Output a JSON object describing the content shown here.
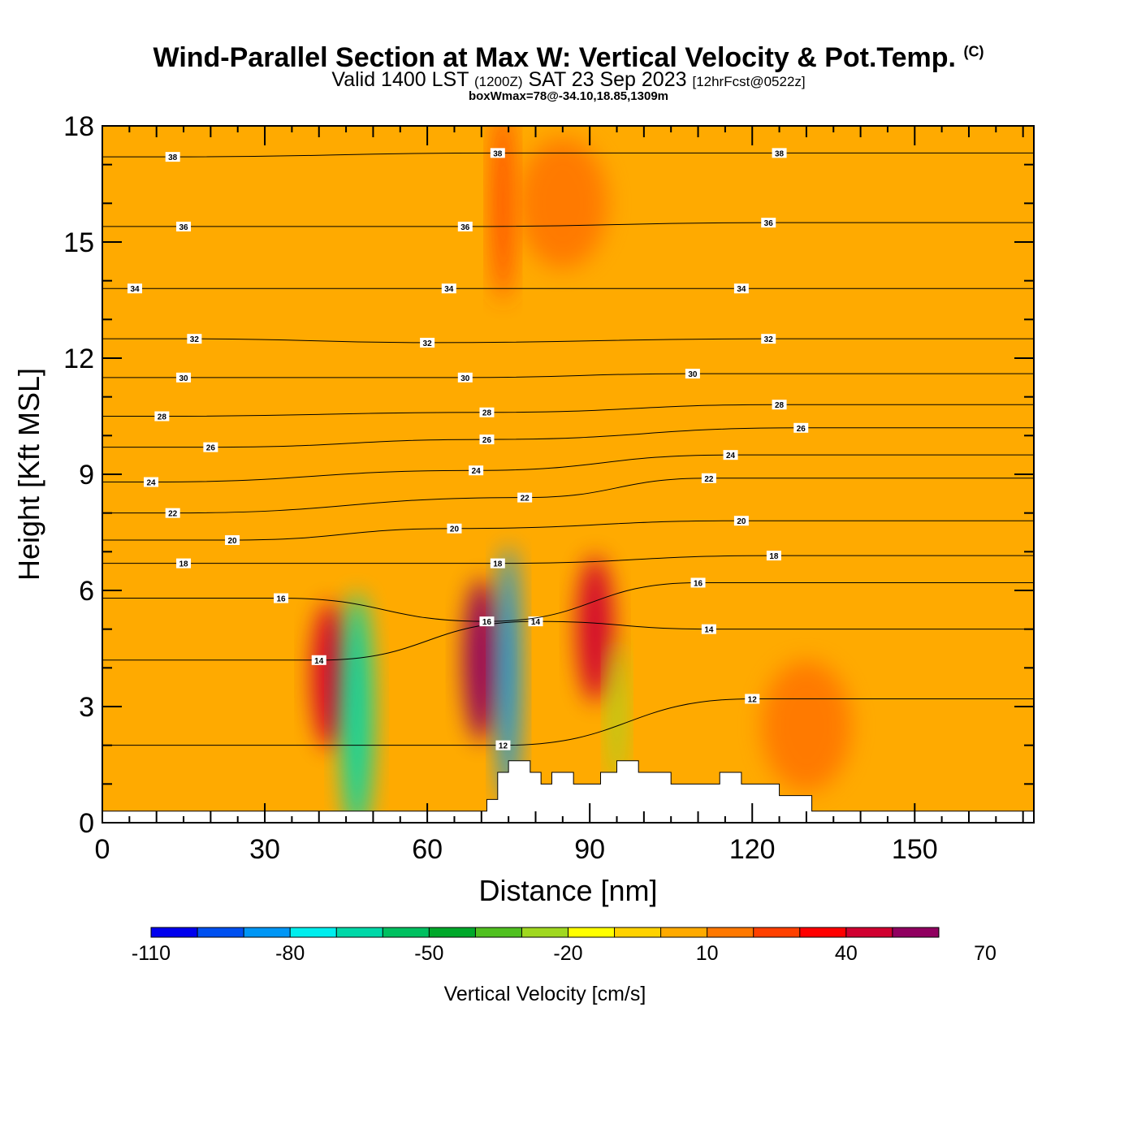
{
  "header": {
    "title": "Wind-Parallel Section at Max W: Vertical Velocity & Pot.Temp.",
    "title_mark": "(C)",
    "valid_prefix": "Valid 1400 LST",
    "valid_utc": "(1200Z)",
    "valid_date": "SAT 23 Sep 2023",
    "forecast": "[12hrFcst@0522z]",
    "box_info": "boxWmax=78@-34.10,18.85,1309m"
  },
  "chart_data": {
    "type": "heatmap",
    "xlabel": "Distance [nm]",
    "ylabel": "Height [Kft MSL]",
    "xlim": [
      0,
      172
    ],
    "ylim": [
      0,
      18
    ],
    "x_ticks": [
      0,
      30,
      60,
      90,
      120,
      150
    ],
    "y_ticks": [
      0,
      3,
      6,
      9,
      12,
      15,
      18
    ],
    "x_tick_labels": [
      "0",
      "30",
      "60",
      "90",
      "120",
      "150"
    ],
    "y_tick_labels": [
      "0",
      "3",
      "6",
      "9",
      "12",
      "15",
      "18"
    ],
    "background_value_range": [
      0,
      10
    ],
    "velocity_cells": [
      {
        "x": 42,
        "y": 3.8,
        "value": 40
      },
      {
        "x": 47,
        "y": 2.8,
        "value": -70
      },
      {
        "x": 70,
        "y": 4.2,
        "value": 50
      },
      {
        "x": 75,
        "y": 3.8,
        "value": -90
      },
      {
        "x": 91,
        "y": 5.0,
        "value": 40
      },
      {
        "x": 95,
        "y": 2.8,
        "value": -30
      },
      {
        "x": 74,
        "y": 16.0,
        "value": 20
      },
      {
        "x": 85,
        "y": 16.0,
        "value": 15
      },
      {
        "x": 130,
        "y": 2.5,
        "value": 15
      }
    ],
    "terrain": [
      [
        0,
        0.3
      ],
      [
        71,
        0.3
      ],
      [
        71,
        0.6
      ],
      [
        73,
        0.6
      ],
      [
        73,
        1.3
      ],
      [
        75,
        1.3
      ],
      [
        75,
        1.6
      ],
      [
        79,
        1.6
      ],
      [
        79,
        1.3
      ],
      [
        81,
        1.3
      ],
      [
        81,
        1.0
      ],
      [
        83,
        1.0
      ],
      [
        83,
        1.3
      ],
      [
        87,
        1.3
      ],
      [
        87,
        1.0
      ],
      [
        92,
        1.0
      ],
      [
        92,
        1.3
      ],
      [
        95,
        1.3
      ],
      [
        95,
        1.6
      ],
      [
        99,
        1.6
      ],
      [
        99,
        1.3
      ],
      [
        105,
        1.3
      ],
      [
        105,
        1.0
      ],
      [
        114,
        1.0
      ],
      [
        114,
        1.3
      ],
      [
        118,
        1.3
      ],
      [
        118,
        1.0
      ],
      [
        125,
        1.0
      ],
      [
        125,
        0.7
      ],
      [
        131,
        0.7
      ],
      [
        131,
        0.3
      ],
      [
        172,
        0.3
      ]
    ],
    "theta_contours": [
      {
        "theta": 12,
        "label_at": [
          [
            74,
            2.0
          ],
          [
            120,
            3.2
          ]
        ]
      },
      {
        "theta": 14,
        "label_at": [
          [
            40,
            4.2
          ],
          [
            80,
            5.2
          ],
          [
            112,
            5.0
          ]
        ]
      },
      {
        "theta": 16,
        "label_at": [
          [
            33,
            5.8
          ],
          [
            71,
            5.2
          ],
          [
            110,
            6.2
          ]
        ]
      },
      {
        "theta": 18,
        "label_at": [
          [
            15,
            6.7
          ],
          [
            73,
            6.7
          ],
          [
            124,
            6.9
          ]
        ]
      },
      {
        "theta": 20,
        "label_at": [
          [
            24,
            7.3
          ],
          [
            65,
            7.6
          ],
          [
            118,
            7.8
          ]
        ]
      },
      {
        "theta": 22,
        "label_at": [
          [
            13,
            8.0
          ],
          [
            78,
            8.4
          ],
          [
            112,
            8.9
          ]
        ]
      },
      {
        "theta": 24,
        "label_at": [
          [
            9,
            8.8
          ],
          [
            69,
            9.1
          ],
          [
            116,
            9.5
          ]
        ]
      },
      {
        "theta": 26,
        "label_at": [
          [
            20,
            9.7
          ],
          [
            71,
            9.9
          ],
          [
            129,
            10.2
          ]
        ]
      },
      {
        "theta": 28,
        "label_at": [
          [
            11,
            10.5
          ],
          [
            71,
            10.6
          ],
          [
            125,
            10.8
          ]
        ]
      },
      {
        "theta": 30,
        "label_at": [
          [
            15,
            11.5
          ],
          [
            67,
            11.5
          ],
          [
            109,
            11.6
          ]
        ]
      },
      {
        "theta": 32,
        "label_at": [
          [
            17,
            12.5
          ],
          [
            60,
            12.4
          ],
          [
            123,
            12.5
          ]
        ]
      },
      {
        "theta": 34,
        "label_at": [
          [
            6,
            13.8
          ],
          [
            64,
            13.8
          ],
          [
            118,
            13.8
          ]
        ]
      },
      {
        "theta": 36,
        "label_at": [
          [
            15,
            15.4
          ],
          [
            67,
            15.4
          ],
          [
            123,
            15.5
          ]
        ]
      },
      {
        "theta": 38,
        "label_at": [
          [
            13,
            17.2
          ],
          [
            73,
            17.3
          ],
          [
            125,
            17.3
          ]
        ]
      }
    ]
  },
  "colorbar": {
    "label": "Vertical Velocity [cm/s]",
    "min": -110,
    "step": 10,
    "tick_values": [
      "-110",
      "-80",
      "-50",
      "-20",
      "10",
      "40",
      "70"
    ],
    "colors": [
      "#0000ee",
      "#0050f0",
      "#0096f5",
      "#00eeee",
      "#00d8a8",
      "#00c060",
      "#00a82a",
      "#50c020",
      "#a0d820",
      "#ffff00",
      "#ffd200",
      "#ffaa00",
      "#ff7800",
      "#ff4000",
      "#ff0000",
      "#d00030",
      "#900060"
    ]
  }
}
